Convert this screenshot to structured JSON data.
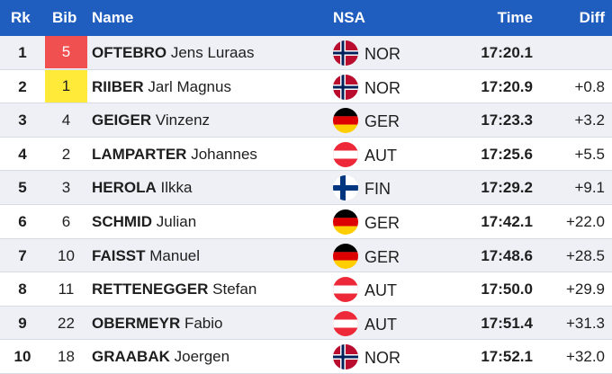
{
  "header": {
    "rk": "Rk",
    "bib": "Bib",
    "name": "Name",
    "nsa": "NSA",
    "time": "Time",
    "diff": "Diff"
  },
  "colors": {
    "header_bg": "#1f5dbf",
    "bib_red": "#f05050",
    "bib_yellow": "#ffea3a"
  },
  "rows": [
    {
      "rk": "1",
      "bib": "5",
      "last": "OFTEBRO",
      "first": "Jens Luraas",
      "nsa": "NOR",
      "flag": "norway-flag-icon",
      "time": "17:20.1",
      "diff": "",
      "bib_color": "red"
    },
    {
      "rk": "2",
      "bib": "1",
      "last": "RIIBER",
      "first": "Jarl Magnus",
      "nsa": "NOR",
      "flag": "norway-flag-icon",
      "time": "17:20.9",
      "diff": "+0.8",
      "bib_color": "yellow"
    },
    {
      "rk": "3",
      "bib": "4",
      "last": "GEIGER",
      "first": "Vinzenz",
      "nsa": "GER",
      "flag": "germany-flag-icon",
      "time": "17:23.3",
      "diff": "+3.2"
    },
    {
      "rk": "4",
      "bib": "2",
      "last": "LAMPARTER",
      "first": "Johannes",
      "nsa": "AUT",
      "flag": "austria-flag-icon",
      "time": "17:25.6",
      "diff": "+5.5"
    },
    {
      "rk": "5",
      "bib": "3",
      "last": "HEROLA",
      "first": "Ilkka",
      "nsa": "FIN",
      "flag": "finland-flag-icon",
      "time": "17:29.2",
      "diff": "+9.1"
    },
    {
      "rk": "6",
      "bib": "6",
      "last": "SCHMID",
      "first": "Julian",
      "nsa": "GER",
      "flag": "germany-flag-icon",
      "time": "17:42.1",
      "diff": "+22.0"
    },
    {
      "rk": "7",
      "bib": "10",
      "last": "FAISST",
      "first": "Manuel",
      "nsa": "GER",
      "flag": "germany-flag-icon",
      "time": "17:48.6",
      "diff": "+28.5"
    },
    {
      "rk": "8",
      "bib": "11",
      "last": "RETTENEGGER",
      "first": "Stefan",
      "nsa": "AUT",
      "flag": "austria-flag-icon",
      "time": "17:50.0",
      "diff": "+29.9"
    },
    {
      "rk": "9",
      "bib": "22",
      "last": "OBERMEYR",
      "first": "Fabio",
      "nsa": "AUT",
      "flag": "austria-flag-icon",
      "time": "17:51.4",
      "diff": "+31.3"
    },
    {
      "rk": "10",
      "bib": "18",
      "last": "GRAABAK",
      "first": "Joergen",
      "nsa": "NOR",
      "flag": "norway-flag-icon",
      "time": "17:52.1",
      "diff": "+32.0"
    }
  ]
}
